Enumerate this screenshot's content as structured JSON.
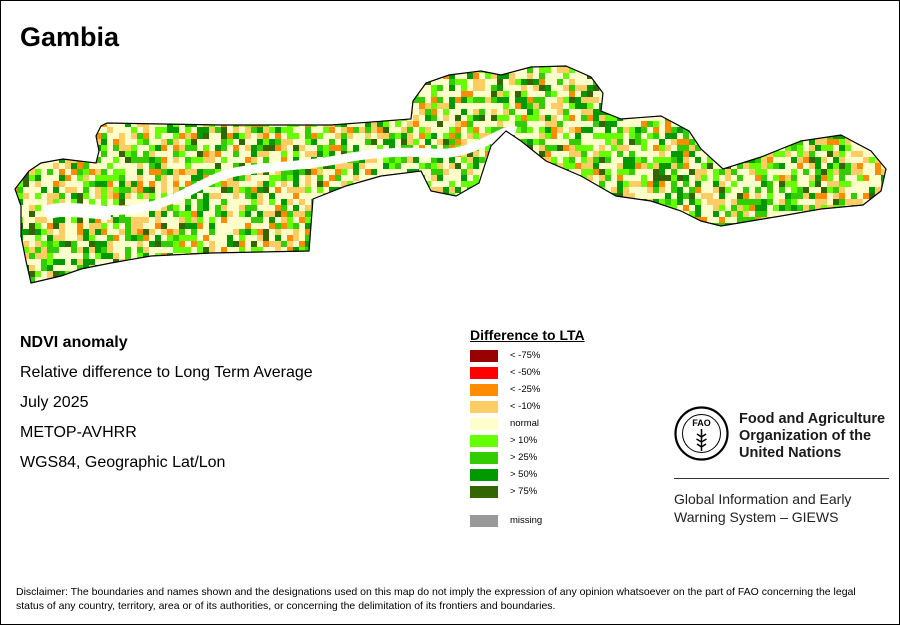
{
  "title": "Gambia",
  "info": {
    "product": "NDVI anomaly",
    "description": "Relative difference to Long Term Average",
    "period": "July 2025",
    "sensor": "METOP-AVHRR",
    "projection": "WGS84, Geographic Lat/Lon"
  },
  "legend": {
    "title": "Difference to LTA",
    "items": [
      {
        "label": "< -75%",
        "color": "#990000"
      },
      {
        "label": "< -50%",
        "color": "#ff0000"
      },
      {
        "label": "< -25%",
        "color": "#ff8c00"
      },
      {
        "label": "< -10%",
        "color": "#ffcc66"
      },
      {
        "label": "normal",
        "color": "#ffffcc"
      },
      {
        "label": "> 10%",
        "color": "#66ff00"
      },
      {
        "label": "> 25%",
        "color": "#33cc00"
      },
      {
        "label": "> 50%",
        "color": "#009900"
      },
      {
        "label": "> 75%",
        "color": "#336600"
      }
    ],
    "missing": {
      "label": "missing",
      "color": "#999999"
    }
  },
  "fao": {
    "name_line1": "Food and Agriculture",
    "name_line2": "Organization of the",
    "name_line3": "United Nations",
    "logo_text": "FAO",
    "giews_line1": "Global Information and Early",
    "giews_line2": "Warning System – GIEWS"
  },
  "disclaimer": "Disclaimer: The boundaries and names shown and the designations used on this map do not imply the expression of any opinion whatsoever on the part of FAO concerning the legal status of any country, territory, area or of its authorities, or concerning the delimitation of its frontiers and boundaries."
}
